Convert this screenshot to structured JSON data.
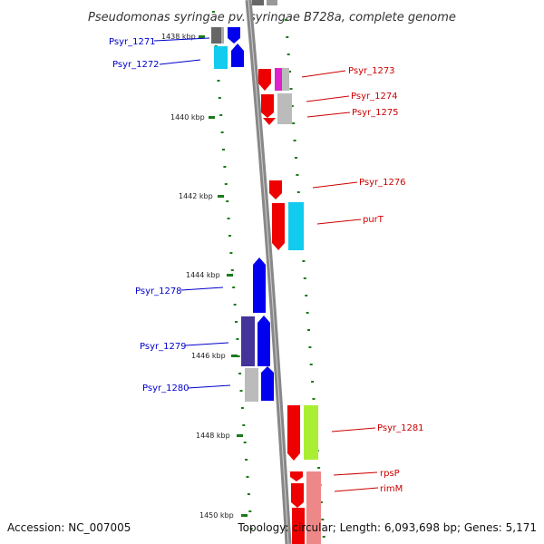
{
  "title": "Pseudomonas syringae pv. syringae B728a, complete genome",
  "footer": {
    "accession": "Accession: NC_007005",
    "topology": "Topology: circular; Length: 6,093,698 bp; Genes: 5,171"
  },
  "colors": {
    "backbone": "#888888",
    "left_labels": "#0000cc",
    "right_labels": "#cc0000",
    "ticks": "#1a7a1a"
  },
  "ticks": [
    "1438 kbp",
    "1440 kbp",
    "1442 kbp",
    "1444 kbp",
    "1446 kbp",
    "1448 kbp",
    "1450 kbp"
  ],
  "gene_labels_left": [
    "Psyr_1271",
    "Psyr_1272",
    "Psyr_1278",
    "Psyr_1279",
    "Psyr_1280"
  ],
  "gene_labels_right": [
    "Psyr_1273",
    "Psyr_1274",
    "Psyr_1275",
    "Psyr_1276",
    "purT",
    "Psyr_1281",
    "rpsP",
    "rimM"
  ]
}
